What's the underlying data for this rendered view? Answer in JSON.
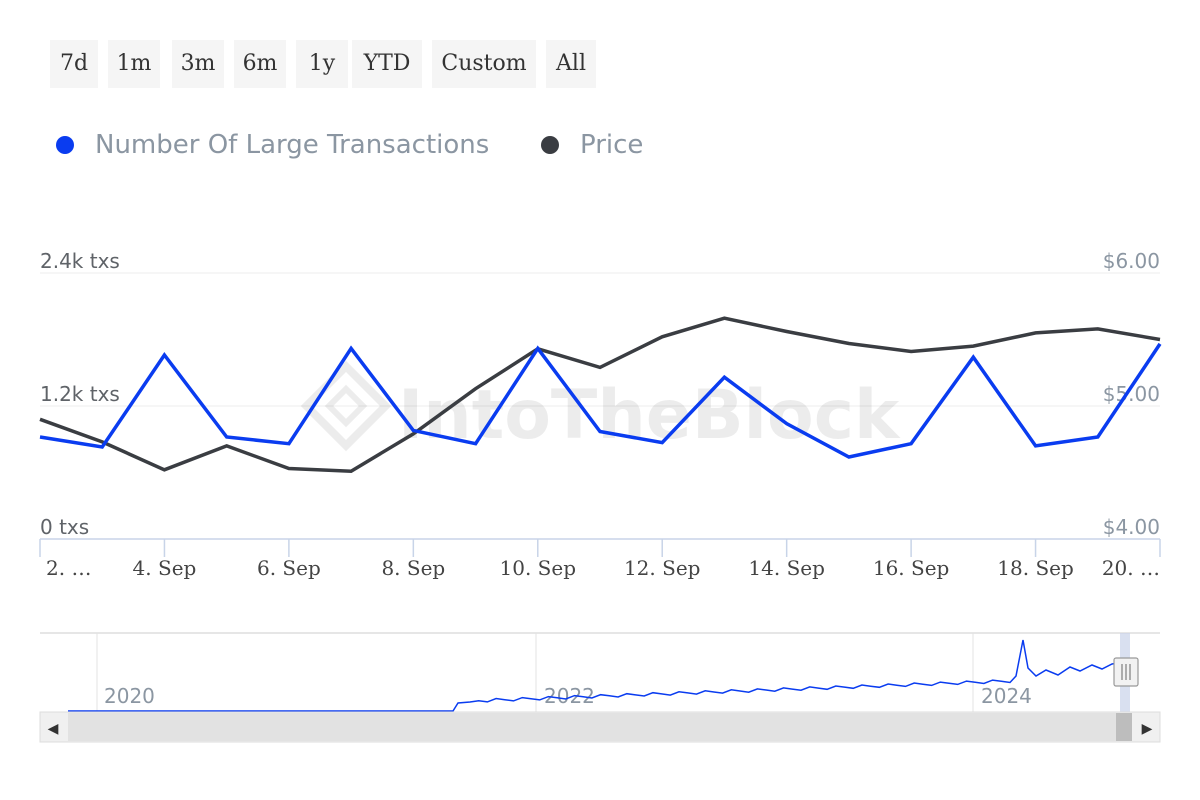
{
  "range_selector": {
    "buttons": [
      "7d",
      "1m",
      "3m",
      "6m",
      "1y",
      "YTD",
      "Custom",
      "All"
    ]
  },
  "watermark": "IntoTheBlock",
  "colors": {
    "transactions": "#0a3cf0",
    "price": "#3a3d42",
    "axis_text": "#8b96a2",
    "left_axis_text": "#5f6368",
    "grid": "#ececec",
    "axis_line": "#c8d4e8"
  },
  "chart_data": {
    "type": "line",
    "title": "",
    "xlabel": "",
    "x": [
      "2 Sep",
      "3 Sep",
      "4 Sep",
      "5 Sep",
      "6 Sep",
      "7 Sep",
      "8 Sep",
      "9 Sep",
      "10 Sep",
      "11 Sep",
      "12 Sep",
      "13 Sep",
      "14 Sep",
      "15 Sep",
      "16 Sep",
      "17 Sep",
      "18 Sep",
      "19 Sep",
      "20 Sep"
    ],
    "x_tick_labels": [
      "2. …",
      "4. Sep",
      "6. Sep",
      "8. Sep",
      "10. Sep",
      "12. Sep",
      "14. Sep",
      "16. Sep",
      "18. Sep",
      "20. …"
    ],
    "y_left": {
      "ticks": [
        0,
        1200,
        2400
      ],
      "tick_labels": [
        "0 txs",
        "1.2k txs",
        "2.4k txs"
      ],
      "ylim": [
        0,
        2400
      ]
    },
    "y_right": {
      "ticks": [
        4.0,
        5.0,
        6.0
      ],
      "tick_labels": [
        "$4.00",
        "$5.00",
        "$6.00"
      ],
      "ylim": [
        4.0,
        6.0
      ]
    },
    "series": [
      {
        "name": "Number Of Large Transactions",
        "axis": "left",
        "values": [
          920,
          830,
          1660,
          920,
          860,
          1720,
          980,
          860,
          1720,
          970,
          870,
          1460,
          1040,
          740,
          860,
          1640,
          840,
          920,
          1760
        ]
      },
      {
        "name": "Price",
        "axis": "right",
        "values": [
          4.9,
          4.73,
          4.52,
          4.7,
          4.53,
          4.51,
          4.79,
          5.13,
          5.43,
          5.29,
          5.52,
          5.66,
          5.56,
          5.47,
          5.41,
          5.45,
          5.55,
          5.58,
          5.5
        ]
      }
    ],
    "grid": true,
    "legend_position": "top-left"
  },
  "navigator": {
    "year_labels": [
      "2020",
      "2022",
      "2024"
    ],
    "scroll_left_arrow": "◀",
    "scroll_right_arrow": "▶"
  }
}
